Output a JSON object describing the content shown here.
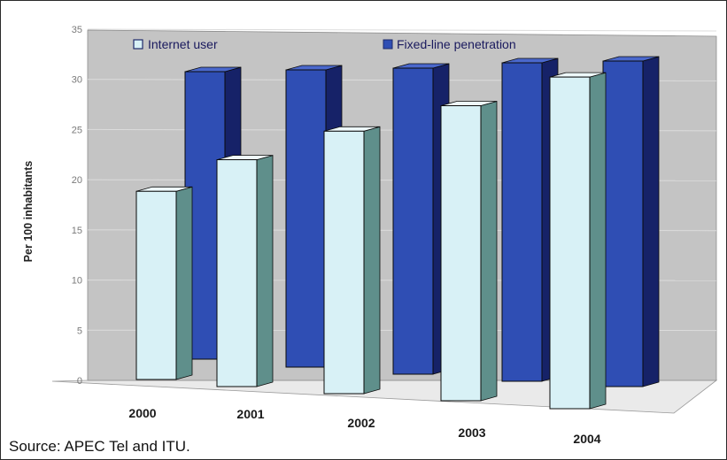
{
  "chart_data": {
    "type": "bar",
    "style": "3d-clustered-column",
    "categories": [
      "2000",
      "2001",
      "2002",
      "2003",
      "2004"
    ],
    "series": [
      {
        "name": "Internet user",
        "values": [
          18.5,
          22.3,
          25.8,
          29.0,
          32.6
        ],
        "color": "#d8f1f6",
        "side_color": "#5f8f8b",
        "top_color": "#eef9fb"
      },
      {
        "name": "Fixed-line penetration",
        "values": [
          31.0,
          31.0,
          31.0,
          31.5,
          32.0
        ],
        "color": "#2f4eb4",
        "side_color": "#162268",
        "top_color": "#4a68cc"
      }
    ],
    "ylabel": "Per 100 inhabitants",
    "xlabel": "",
    "title": "",
    "y_ticks": [
      "0",
      "5",
      "10",
      "15",
      "20",
      "25",
      "30",
      "35"
    ],
    "ylim": [
      0,
      35
    ],
    "grid": true,
    "legend_position": "top",
    "wall_color": "#c4c4c4",
    "floor_color": "#eaeaea"
  },
  "source": "Source:  APEC Tel and ITU."
}
